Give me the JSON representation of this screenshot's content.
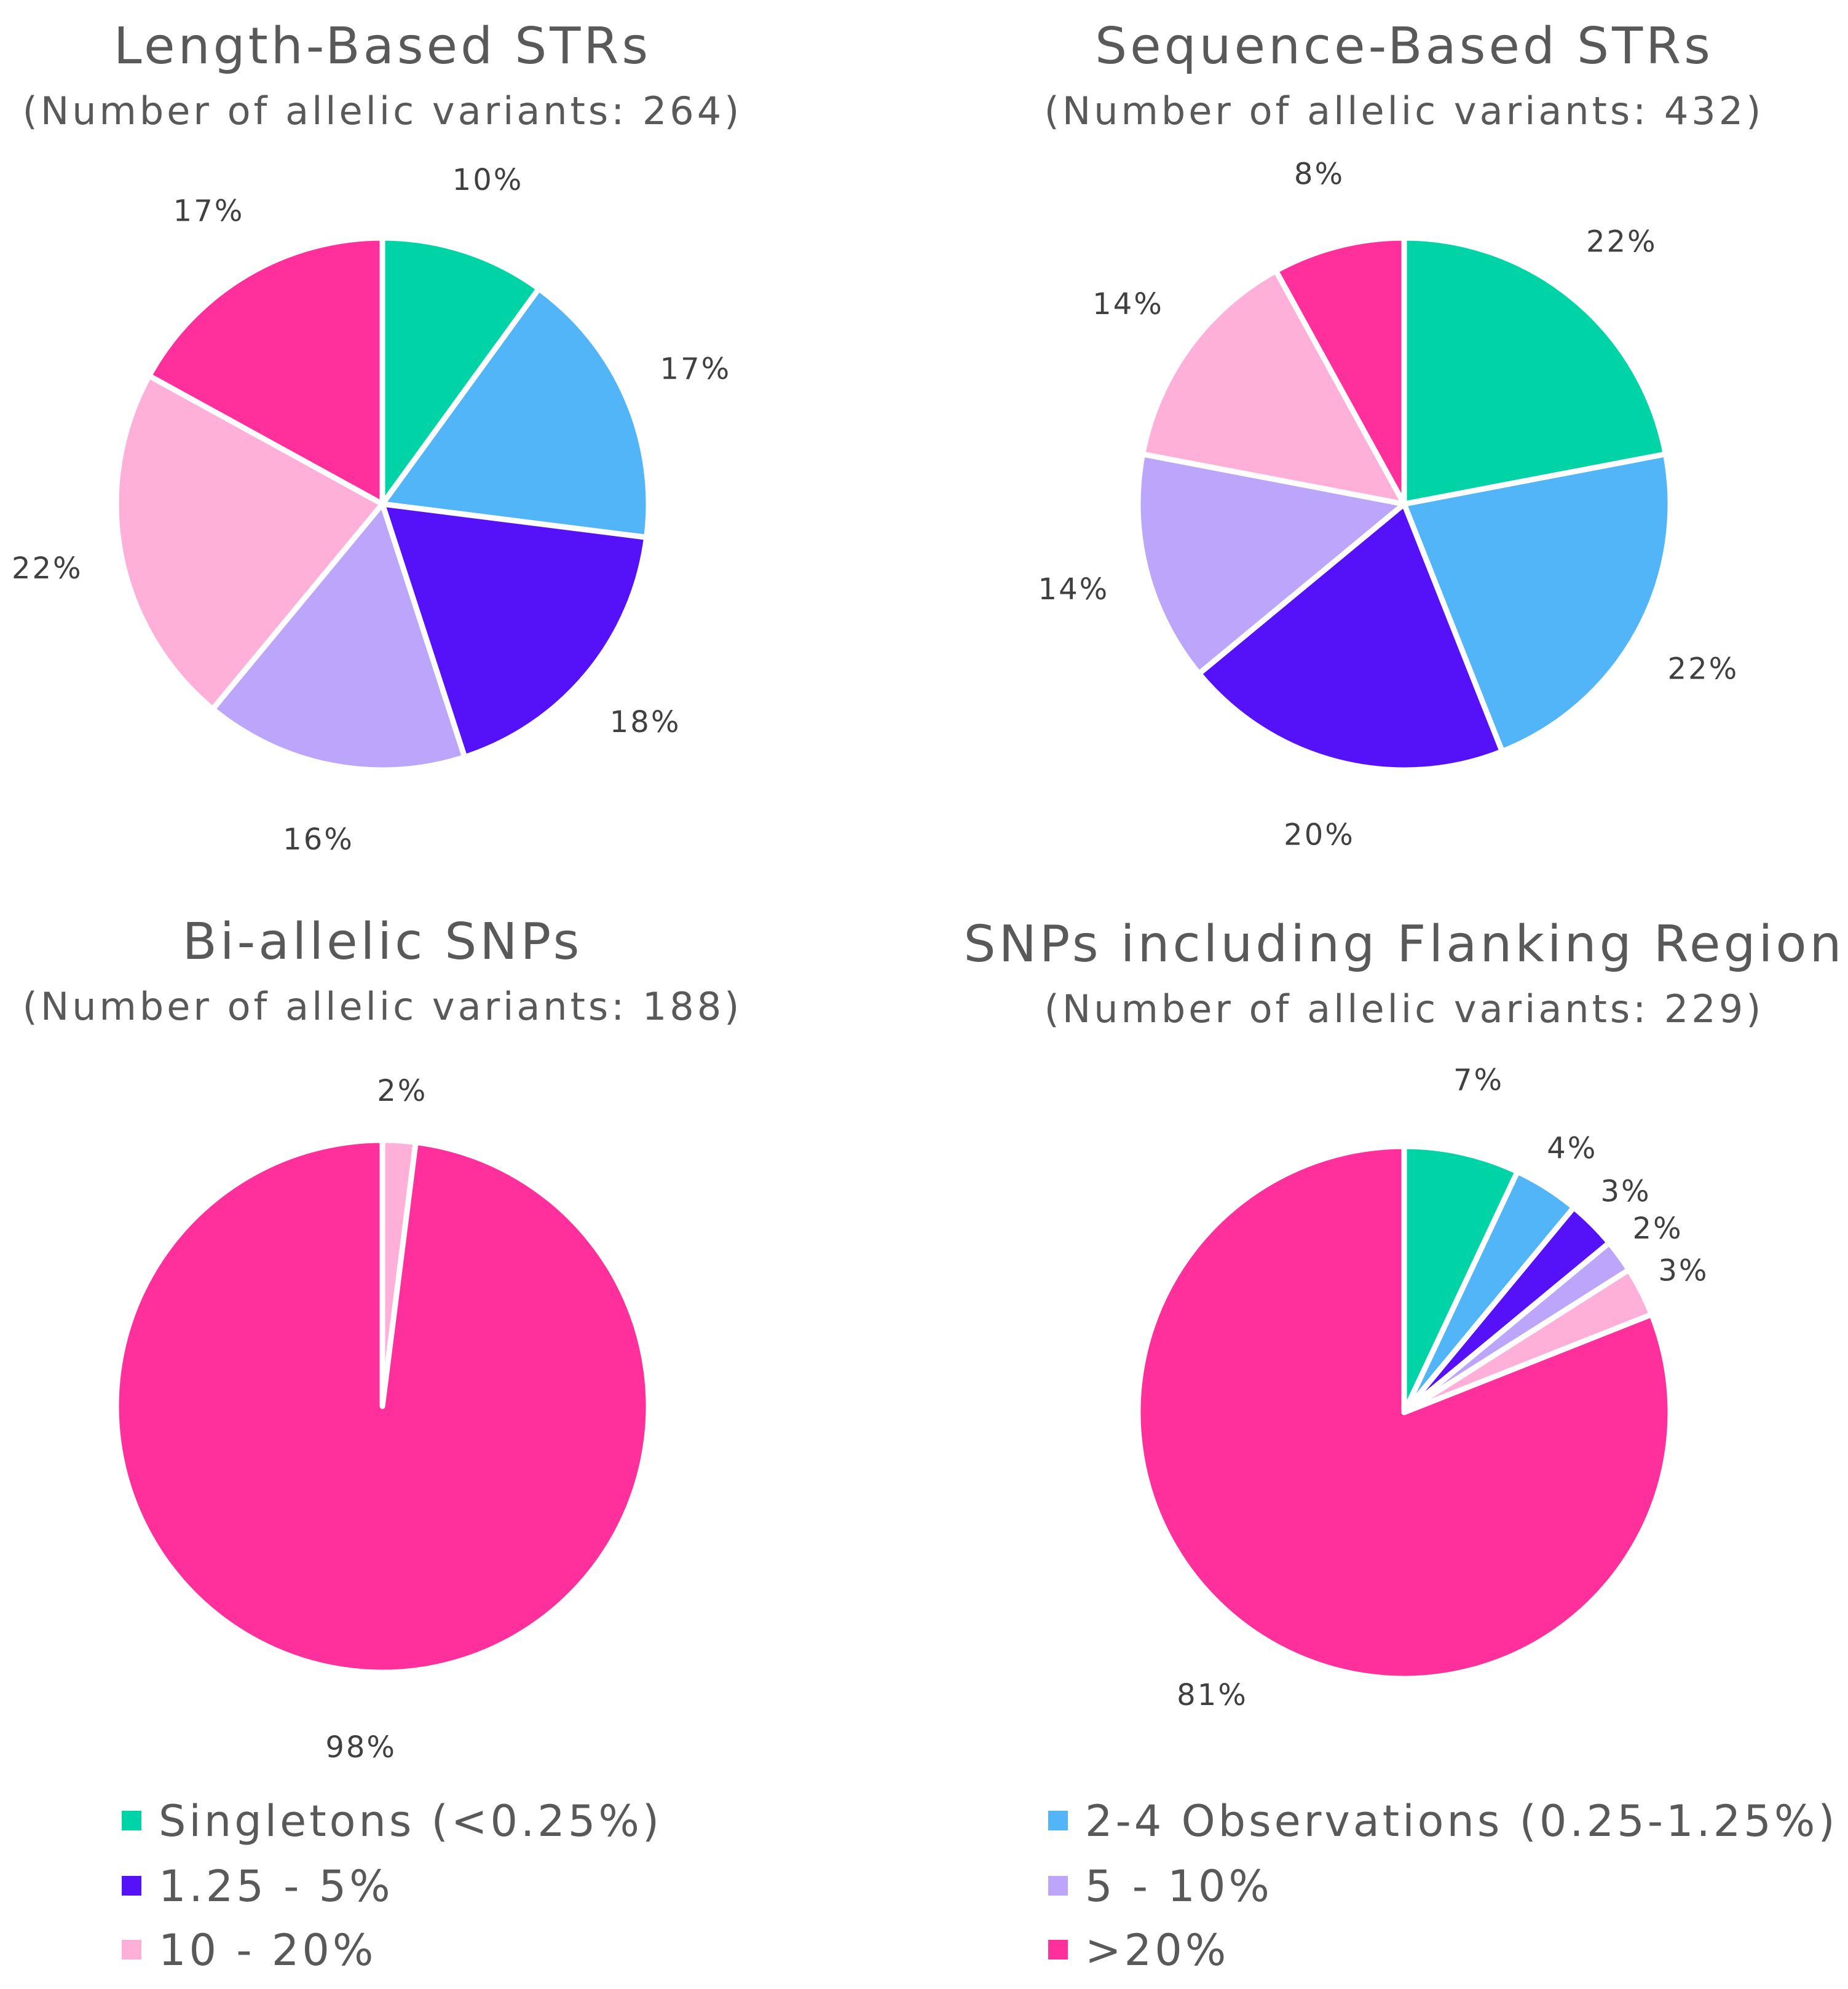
{
  "chart_data": [
    {
      "type": "pie",
      "title": "Length-Based STRs",
      "subtitle": "(Number of allelic variants: 264)",
      "categories": [
        "Singletons (<0.25%)",
        "2-4 Observations (0.25-1.25%)",
        "1.25 - 5%",
        "5 - 10%",
        "10 - 20%",
        ">20%"
      ],
      "values": [
        10,
        17,
        18,
        16,
        22,
        17
      ],
      "labels": [
        "10%",
        "17%",
        "18%",
        "16%",
        "22%",
        "17%"
      ]
    },
    {
      "type": "pie",
      "title": "Sequence-Based STRs",
      "subtitle": "(Number of allelic variants: 432)",
      "categories": [
        "Singletons (<0.25%)",
        "2-4 Observations (0.25-1.25%)",
        "1.25 - 5%",
        "5 - 10%",
        "10 - 20%",
        ">20%"
      ],
      "values": [
        22,
        22,
        20,
        14,
        14,
        8
      ],
      "labels": [
        "22%",
        "22%",
        "20%",
        "14%",
        "14%",
        "8%"
      ]
    },
    {
      "type": "pie",
      "title": "Bi-allelic SNPs",
      "subtitle": "(Number of allelic variants: 188)",
      "categories": [
        "10 - 20%",
        ">20%"
      ],
      "values": [
        2,
        98
      ],
      "labels": [
        "2%",
        "98%"
      ]
    },
    {
      "type": "pie",
      "title": "SNPs including Flanking Region",
      "subtitle": "(Number of allelic variants: 229)",
      "categories": [
        "Singletons (<0.25%)",
        "2-4 Observations (0.25-1.25%)",
        "1.25 - 5%",
        "5 - 10%",
        "10 - 20%",
        ">20%"
      ],
      "values": [
        7,
        4,
        3,
        2,
        3,
        81
      ],
      "labels": [
        "7%",
        "4%",
        "3%",
        "2%",
        "3%",
        "81%"
      ]
    }
  ],
  "legend": [
    {
      "label": "Singletons (<0.25%)",
      "color": "#00D4A6"
    },
    {
      "label": "2-4 Observations (0.25-1.25%)",
      "color": "#51B5F8"
    },
    {
      "label": "1.25 - 5%",
      "color": "#5512F8"
    },
    {
      "label": "5 - 10%",
      "color": "#BBA6FC"
    },
    {
      "label": "10 - 20%",
      "color": "#FEB0D9"
    },
    {
      "label": ">20%",
      "color": "#FF2F9C"
    }
  ],
  "colors": {
    "Singletons (<0.25%)": "#00D4A6",
    "2-4 Observations (0.25-1.25%)": "#51B5F8",
    "1.25 - 5%": "#5512F8",
    "5 - 10%": "#BBA6FC",
    "10 - 20%": "#FEB0D9",
    ">20%": "#FF2F9C"
  }
}
